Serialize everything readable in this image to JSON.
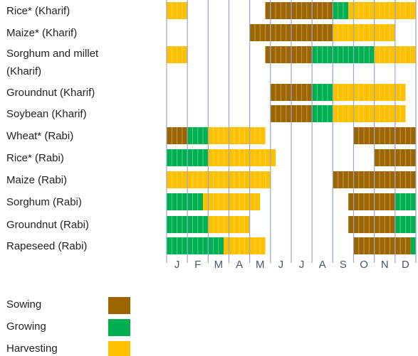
{
  "chart_data": {
    "type": "gantt",
    "months": [
      "J",
      "F",
      "M",
      "A",
      "M",
      "J",
      "J",
      "A",
      "S",
      "O",
      "N",
      "D"
    ],
    "xlim": [
      0,
      12
    ],
    "phases": [
      {
        "name": "Sowing",
        "color": "#9c6500"
      },
      {
        "name": "Growing",
        "color": "#00b050"
      },
      {
        "name": "Harvesting",
        "color": "#ffc000"
      }
    ],
    "rows": [
      {
        "label": "Rice* (Kharif)",
        "segments": [
          {
            "phase": "Harvesting",
            "start": 0,
            "end": 1
          },
          {
            "phase": "Sowing",
            "start": 4.75,
            "end": 8
          },
          {
            "phase": "Growing",
            "start": 8,
            "end": 8.75
          },
          {
            "phase": "Harvesting",
            "start": 8.75,
            "end": 12
          }
        ]
      },
      {
        "label": "Maize* (Kharif)",
        "segments": [
          {
            "phase": "Sowing",
            "start": 4,
            "end": 8
          },
          {
            "phase": "Harvesting",
            "start": 8,
            "end": 11
          }
        ]
      },
      {
        "label": "Sorghum and millet (Kharif)",
        "segments": [
          {
            "phase": "Harvesting",
            "start": 0,
            "end": 1
          },
          {
            "phase": "Sowing",
            "start": 4.75,
            "end": 7
          },
          {
            "phase": "Growing",
            "start": 7,
            "end": 10
          },
          {
            "phase": "Harvesting",
            "start": 10,
            "end": 12
          }
        ]
      },
      {
        "label": "Groundnut (Kharif)",
        "segments": [
          {
            "phase": "Sowing",
            "start": 5,
            "end": 7
          },
          {
            "phase": "Growing",
            "start": 7,
            "end": 8
          },
          {
            "phase": "Harvesting",
            "start": 8,
            "end": 11.5
          }
        ]
      },
      {
        "label": "Soybean (Kharif)",
        "segments": [
          {
            "phase": "Sowing",
            "start": 5,
            "end": 7
          },
          {
            "phase": "Growing",
            "start": 7,
            "end": 8
          },
          {
            "phase": "Harvesting",
            "start": 8,
            "end": 11.5
          }
        ]
      },
      {
        "label": "Wheat* (Rabi)",
        "segments": [
          {
            "phase": "Sowing",
            "start": 0,
            "end": 1
          },
          {
            "phase": "Growing",
            "start": 1,
            "end": 2
          },
          {
            "phase": "Harvesting",
            "start": 2,
            "end": 4.75
          },
          {
            "phase": "Sowing",
            "start": 9,
            "end": 12
          }
        ]
      },
      {
        "label": "Rice* (Rabi)",
        "segments": [
          {
            "phase": "Growing",
            "start": 0,
            "end": 2
          },
          {
            "phase": "Harvesting",
            "start": 2,
            "end": 5.25
          },
          {
            "phase": "Sowing",
            "start": 10,
            "end": 12
          }
        ]
      },
      {
        "label": "Maize (Rabi)",
        "segments": [
          {
            "phase": "Harvesting",
            "start": 0,
            "end": 5
          },
          {
            "phase": "Sowing",
            "start": 8,
            "end": 12
          }
        ]
      },
      {
        "label": "Sorghum (Rabi)",
        "segments": [
          {
            "phase": "Growing",
            "start": 0,
            "end": 1.75
          },
          {
            "phase": "Harvesting",
            "start": 1.75,
            "end": 4.5
          },
          {
            "phase": "Sowing",
            "start": 8.75,
            "end": 11
          },
          {
            "phase": "Growing",
            "start": 11,
            "end": 12
          }
        ]
      },
      {
        "label": "Groundnut (Rabi)",
        "segments": [
          {
            "phase": "Growing",
            "start": 0,
            "end": 2
          },
          {
            "phase": "Harvesting",
            "start": 2,
            "end": 4
          },
          {
            "phase": "Sowing",
            "start": 8.75,
            "end": 11
          },
          {
            "phase": "Growing",
            "start": 11,
            "end": 12
          }
        ]
      },
      {
        "label": "Rapeseed (Rabi)",
        "segments": [
          {
            "phase": "Growing",
            "start": 0,
            "end": 2.75
          },
          {
            "phase": "Harvesting",
            "start": 2.75,
            "end": 4.75
          },
          {
            "phase": "Sowing",
            "start": 9,
            "end": 11.75
          },
          {
            "phase": "Growing",
            "start": 11.75,
            "end": 12
          }
        ]
      }
    ]
  }
}
